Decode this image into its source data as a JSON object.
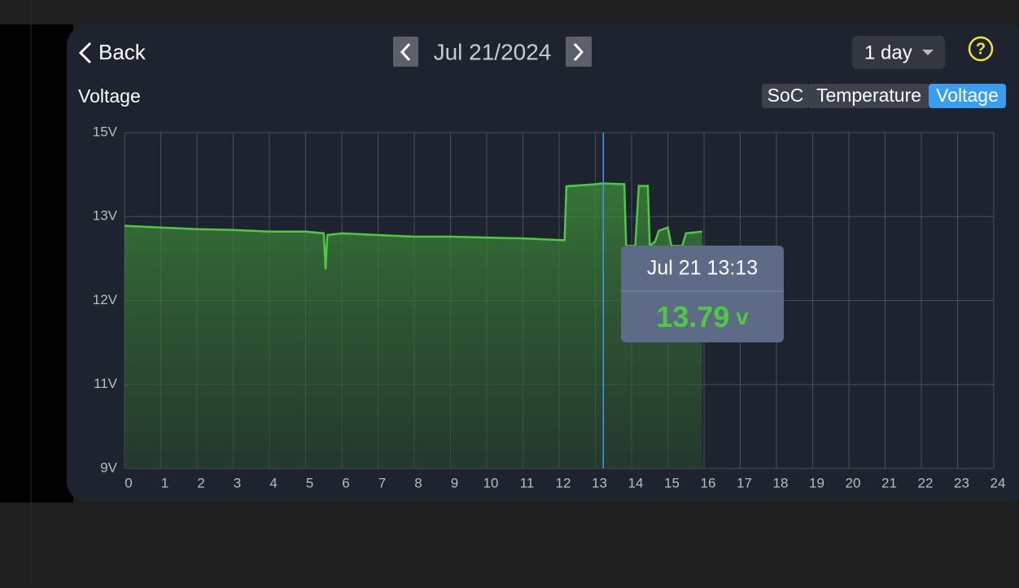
{
  "header": {
    "back": "Back",
    "date": "Jul 21/2024",
    "range": "1 day",
    "help": "?"
  },
  "tabs": {
    "items": [
      "SoC",
      "Temperature",
      "Voltage"
    ],
    "active": 2
  },
  "chart_data": {
    "type": "area",
    "title": "Voltage",
    "x": [
      0,
      1,
      2,
      3,
      4,
      5,
      5.5,
      5.55,
      5.6,
      6,
      7,
      8,
      9,
      10,
      11,
      12.05,
      12.15,
      12.2,
      13,
      13.2,
      13.8,
      13.85,
      14.1,
      14.2,
      14.45,
      14.5,
      14.65,
      14.75,
      15,
      15.1,
      15.4,
      15.5,
      15.95
    ],
    "values": [
      12.89,
      12.87,
      12.85,
      12.84,
      12.82,
      12.82,
      12.8,
      12.37,
      12.78,
      12.8,
      12.78,
      12.76,
      12.76,
      12.75,
      12.74,
      12.72,
      12.72,
      13.72,
      13.77,
      13.79,
      13.77,
      12.65,
      12.65,
      13.73,
      13.73,
      12.65,
      12.7,
      12.83,
      12.87,
      12.65,
      12.65,
      12.8,
      12.82
    ],
    "color": "#4fc845",
    "xlim": [
      0,
      24
    ],
    "xticks": [
      0,
      1,
      2,
      3,
      4,
      5,
      6,
      7,
      8,
      9,
      10,
      11,
      12,
      13,
      14,
      15,
      16,
      17,
      18,
      19,
      20,
      21,
      22,
      23,
      24
    ],
    "ylim": [
      9,
      15
    ],
    "yticks": [
      {
        "value": 9,
        "label": "9V"
      },
      {
        "value": 11,
        "label": "11V"
      },
      {
        "value": 12,
        "label": "12V"
      },
      {
        "value": 13,
        "label": "13V"
      },
      {
        "value": 15,
        "label": "15V"
      }
    ],
    "grid": true,
    "cursor_x": 13.22,
    "tooltip": {
      "time": "Jul 21 13:13",
      "value": 13.79,
      "unit": "v"
    }
  }
}
